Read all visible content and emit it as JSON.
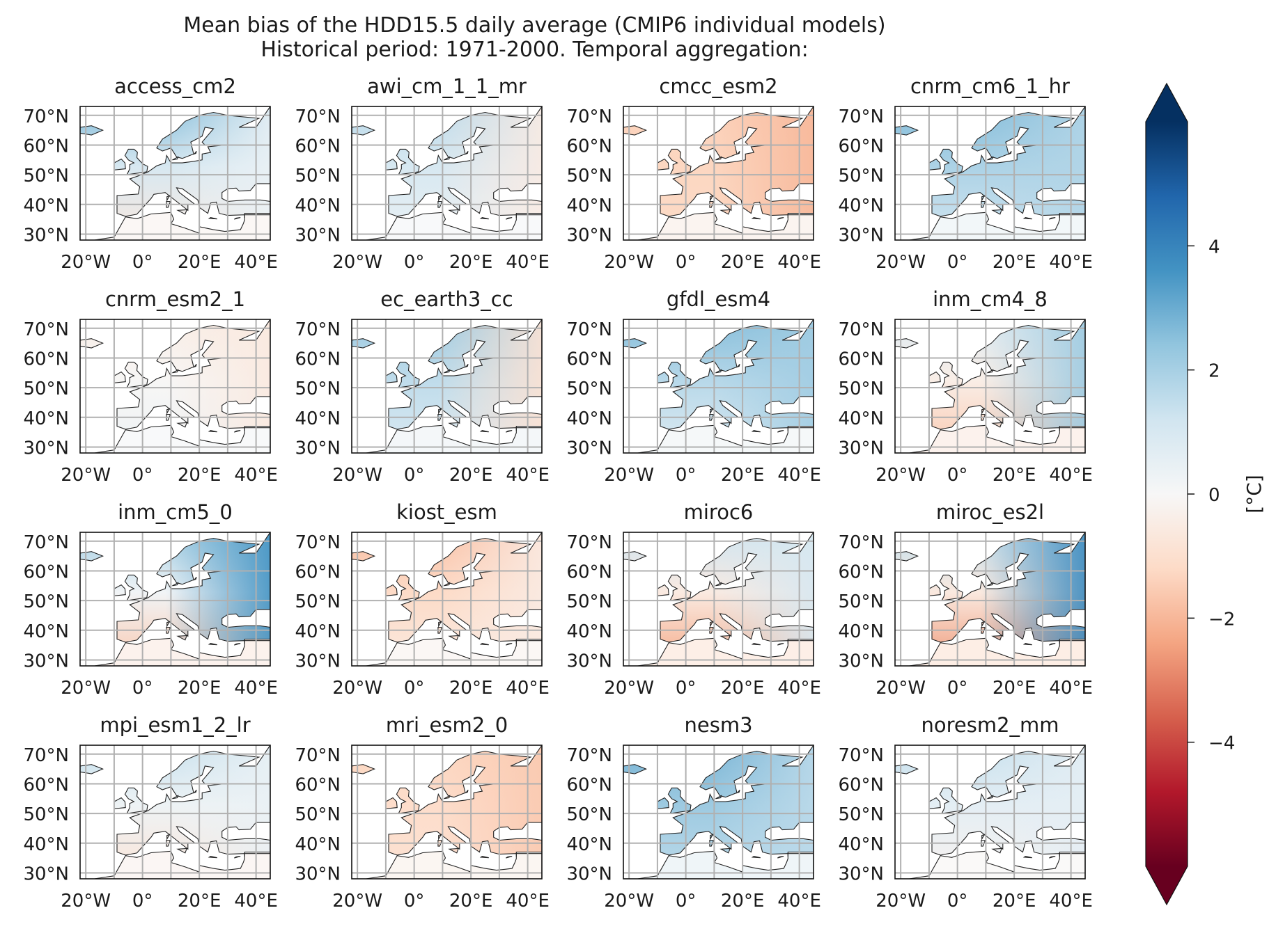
{
  "chart_data": {
    "type": "heatmap",
    "title": "Mean bias of the HDD15.5 daily average (CMIP6 individual models)",
    "subtitle": "Historical period: 1971-2000. Temporal aggregation:",
    "panels": [
      {
        "name": "access_cm2",
        "north": 2.6,
        "south": -0.6,
        "east": 0.4
      },
      {
        "name": "awi_cm_1_1_mr",
        "north": 1.6,
        "south": 0.4,
        "east": -0.5
      },
      {
        "name": "cmcc_esm2",
        "north": -1.4,
        "south": -1.2,
        "east": -2.0
      },
      {
        "name": "cnrm_cm6_1_hr",
        "north": 2.6,
        "south": 1.2,
        "east": 1.8
      },
      {
        "name": "cnrm_esm2_1",
        "north": -0.4,
        "south": 0.3,
        "east": -0.6
      },
      {
        "name": "ec_earth3_cc",
        "north": 2.2,
        "south": 0.9,
        "east": -0.9
      },
      {
        "name": "gfdl_esm4",
        "north": 2.6,
        "south": 0.8,
        "east": 2.1
      },
      {
        "name": "inm_cm4_8",
        "north": 0.8,
        "south": -1.6,
        "east": 2.2
      },
      {
        "name": "inm_cm5_0",
        "north": 2.0,
        "south": -1.6,
        "east": 3.6
      },
      {
        "name": "kiost_esm",
        "north": -1.8,
        "south": -0.6,
        "east": -0.5
      },
      {
        "name": "miroc6",
        "north": 1.2,
        "south": -2.3,
        "east": 1.0
      },
      {
        "name": "miroc_es2l",
        "north": 1.4,
        "south": -2.6,
        "east": 3.8
      },
      {
        "name": "mpi_esm1_2_lr",
        "north": 1.4,
        "south": -0.8,
        "east": 0.4
      },
      {
        "name": "mri_esm2_0",
        "north": -1.3,
        "south": -0.9,
        "east": -1.6
      },
      {
        "name": "nesm3",
        "north": 2.8,
        "south": 1.6,
        "east": 1.6
      },
      {
        "name": "noresm2_mm",
        "north": 1.4,
        "south": -0.2,
        "east": 0.6
      }
    ],
    "x_ticks": [
      "20°W",
      "0°",
      "20°E",
      "40°E"
    ],
    "y_ticks": [
      "70°N",
      "60°N",
      "50°N",
      "40°N",
      "30°N"
    ],
    "x_range": [
      -22,
      45
    ],
    "y_range": [
      28,
      73
    ],
    "colorbar": {
      "label": "[°C]",
      "ticks": [
        4,
        2,
        0,
        -2,
        -4
      ],
      "tick_labels": [
        "4",
        "2",
        "0",
        "−2",
        "−4"
      ],
      "range": [
        -6,
        6
      ],
      "extend": "both",
      "colormap": "RdBu"
    }
  },
  "colors": {
    "colormap_stops": [
      "#67001f",
      "#b2182b",
      "#d6604d",
      "#f4a582",
      "#fddbc7",
      "#f7f7f7",
      "#d1e5f0",
      "#92c5de",
      "#4393c3",
      "#2166ac",
      "#053061"
    ],
    "gridline": "#b0b0b0",
    "coastline": "#222222",
    "frame": "#111111"
  }
}
